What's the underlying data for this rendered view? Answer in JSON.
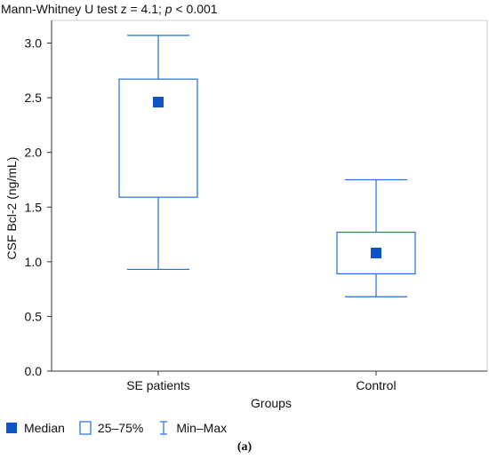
{
  "title": {
    "prefix": "Mann-Whitney U test z = 4.1; ",
    "italic": "p",
    "suffix": " < 0.001"
  },
  "caption": "(a)",
  "legend": {
    "median": "Median",
    "iqr": "25–75%",
    "range": "Min–Max"
  },
  "colors": {
    "series": "#1f6fd6",
    "median_fill": "#1055c8",
    "axis": "#333333",
    "frame": "#cccccc"
  },
  "chart_data": {
    "type": "boxplot",
    "title": "Mann-Whitney U test z = 4.1; p < 0.001",
    "xlabel": "Groups",
    "ylabel": "CSF Bcl-2 (ng/mL)",
    "ylim": [
      0,
      3.1
    ],
    "yticks": [
      "0.0",
      "0.5",
      "1.0",
      "1.5",
      "2.0",
      "2.5",
      "3.0"
    ],
    "ytick_values": [
      0,
      0.5,
      1.0,
      1.5,
      2.0,
      2.5,
      3.0
    ],
    "categories": [
      "SE patients",
      "Control"
    ],
    "boxes": [
      {
        "category": "SE patients",
        "min": 0.93,
        "q1": 1.59,
        "median": 2.46,
        "q3": 2.67,
        "max": 3.07
      },
      {
        "category": "Control",
        "min": 0.68,
        "q1": 0.89,
        "median": 1.08,
        "q3": 1.27,
        "max": 1.75
      }
    ],
    "legend_position": "bottom-left",
    "grid": false
  }
}
